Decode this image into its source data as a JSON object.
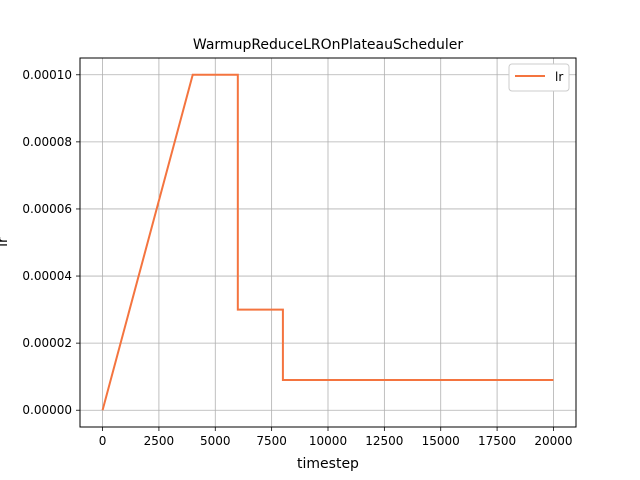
{
  "chart_data": {
    "type": "line",
    "title": "WarmupReduceLROnPlateauScheduler",
    "xlabel": "timestep",
    "ylabel": "lr",
    "xlim": [
      -1000,
      21000
    ],
    "ylim": [
      -5e-06,
      0.000105
    ],
    "xticks": [
      0,
      2500,
      5000,
      7500,
      10000,
      12500,
      15000,
      17500,
      20000
    ],
    "xtick_labels": [
      "0",
      "2500",
      "5000",
      "7500",
      "10000",
      "12500",
      "15000",
      "17500",
      "20000"
    ],
    "yticks": [
      0,
      2e-05,
      4e-05,
      6e-05,
      8e-05,
      0.0001
    ],
    "ytick_labels": [
      "0.00000",
      "0.00002",
      "0.00004",
      "0.00006",
      "0.00008",
      "0.00010"
    ],
    "grid": true,
    "legend_position": "top-right",
    "series": [
      {
        "name": "lr",
        "color": "#f4743f",
        "x": [
          0,
          4000,
          6000,
          6000,
          8000,
          8000,
          20000
        ],
        "y": [
          0,
          0.0001,
          0.0001,
          3e-05,
          3e-05,
          9e-06,
          9e-06
        ]
      }
    ]
  }
}
